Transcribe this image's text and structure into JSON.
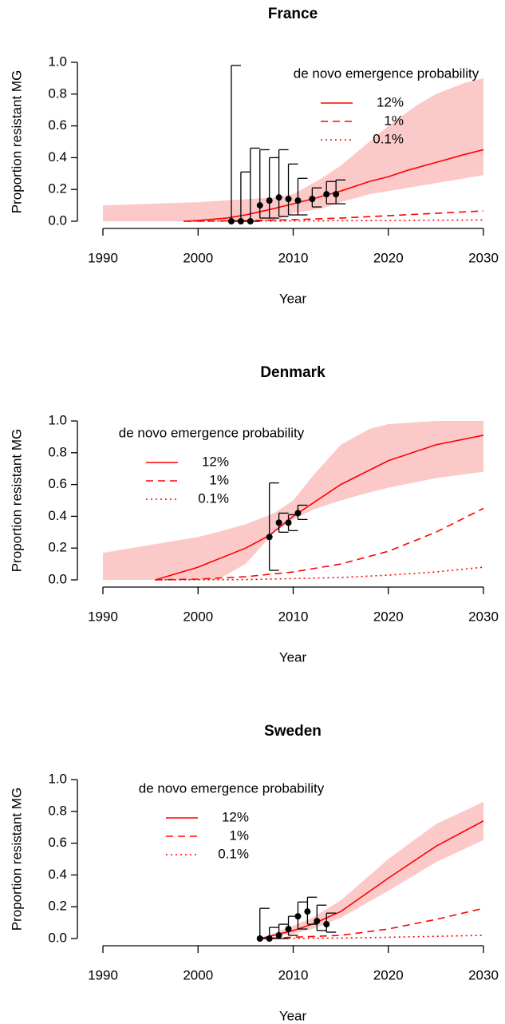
{
  "chart_data": [
    {
      "type": "line",
      "title": "France",
      "xlabel": "Year",
      "ylabel": "Proportion resistant MG",
      "legend_title": "de novo emergence probability",
      "legend": "topright",
      "xlim": [
        1990,
        2030
      ],
      "xticks": [
        1990,
        2000,
        2010,
        2020,
        2030
      ],
      "ylim": [
        0,
        1
      ],
      "yticks": [
        {
          "value": 0,
          "label": "0.0"
        },
        {
          "value": 0.2,
          "label": "0.2"
        },
        {
          "value": 0.4,
          "label": "0.4"
        },
        {
          "value": 0.6,
          "label": "0.6"
        },
        {
          "value": 0.8,
          "label": "0.8"
        },
        {
          "value": 1,
          "label": "1.0"
        }
      ],
      "series": [
        {
          "name": "12%",
          "color": "#ff0000",
          "linestyle": "solid",
          "x": [
            1998.5,
            2000,
            2003,
            2005,
            2008,
            2010,
            2012,
            2015,
            2018,
            2020,
            2022,
            2025,
            2028,
            2030
          ],
          "values": [
            0,
            0.005,
            0.02,
            0.04,
            0.08,
            0.11,
            0.14,
            0.19,
            0.25,
            0.28,
            0.32,
            0.37,
            0.42,
            0.45
          ]
        },
        {
          "name": "1%",
          "color": "#ff0000",
          "linestyle": "dashed",
          "x": [
            1998.5,
            2005,
            2010,
            2015,
            2020,
            2025,
            2030
          ],
          "values": [
            0,
            0.003,
            0.01,
            0.02,
            0.035,
            0.05,
            0.065
          ]
        },
        {
          "name": "0.1%",
          "color": "#ff0000",
          "linestyle": "dotted",
          "x": [
            1998.5,
            2010,
            2020,
            2030
          ],
          "values": [
            0,
            0.002,
            0.005,
            0.008
          ]
        }
      ],
      "band": {
        "color": "#fcc9c9",
        "x": [
          1990,
          2000,
          2008,
          2010,
          2013,
          2015,
          2018,
          2020,
          2023,
          2025,
          2028,
          2030
        ],
        "lower": [
          0,
          0,
          0,
          0.05,
          0.08,
          0.12,
          0.17,
          0.19,
          0.22,
          0.24,
          0.27,
          0.29
        ],
        "upper": [
          0.1,
          0.12,
          0.15,
          0.17,
          0.27,
          0.35,
          0.5,
          0.6,
          0.73,
          0.8,
          0.87,
          0.9
        ]
      },
      "points": {
        "x": [
          2003.5,
          2004.5,
          2005.5,
          2006.5,
          2007.5,
          2008.5,
          2009.5,
          2010.5,
          2012,
          2013.5,
          2014.5
        ],
        "values": [
          0,
          0,
          0,
          0.1,
          0.13,
          0.15,
          0.14,
          0.13,
          0.14,
          0.17,
          0.17
        ],
        "lower": [
          0,
          0,
          0,
          0.02,
          0.02,
          0.03,
          0.04,
          0.04,
          0.09,
          0.11,
          0.11
        ],
        "upper": [
          0.98,
          0.31,
          0.46,
          0.45,
          0.4,
          0.45,
          0.36,
          0.27,
          0.21,
          0.25,
          0.26
        ]
      }
    },
    {
      "type": "line",
      "title": "Denmark",
      "xlabel": "Year",
      "ylabel": "Proportion resistant MG",
      "legend_title": "de novo emergence probability",
      "legend": "topleft",
      "xlim": [
        1990,
        2030
      ],
      "xticks": [
        1990,
        2000,
        2010,
        2020,
        2030
      ],
      "ylim": [
        0,
        1
      ],
      "yticks": [
        {
          "value": 0,
          "label": "0.0"
        },
        {
          "value": 0.2,
          "label": "0.2"
        },
        {
          "value": 0.4,
          "label": "0.4"
        },
        {
          "value": 0.6,
          "label": "0.6"
        },
        {
          "value": 0.8,
          "label": "0.8"
        },
        {
          "value": 1,
          "label": "1.0"
        }
      ],
      "series": [
        {
          "name": "12%",
          "color": "#ff0000",
          "linestyle": "solid",
          "x": [
            1995.5,
            2000,
            2005,
            2007.5,
            2010,
            2015,
            2020,
            2025,
            2030
          ],
          "values": [
            0,
            0.08,
            0.2,
            0.28,
            0.4,
            0.6,
            0.75,
            0.85,
            0.91
          ]
        },
        {
          "name": "1%",
          "color": "#ff0000",
          "linestyle": "dashed",
          "x": [
            1995.5,
            2000,
            2005,
            2010,
            2015,
            2020,
            2025,
            2030
          ],
          "values": [
            0,
            0.005,
            0.02,
            0.05,
            0.1,
            0.18,
            0.3,
            0.45
          ]
        },
        {
          "name": "0.1%",
          "color": "#ff0000",
          "linestyle": "dotted",
          "x": [
            1995.5,
            2005,
            2010,
            2015,
            2020,
            2025,
            2030
          ],
          "values": [
            0,
            0.002,
            0.008,
            0.015,
            0.03,
            0.05,
            0.08
          ]
        }
      ],
      "band": {
        "color": "#fcc9c9",
        "x": [
          1990,
          2000,
          2002,
          2005,
          2008,
          2010,
          2012,
          2015,
          2018,
          2020,
          2025,
          2030
        ],
        "lower": [
          0,
          0,
          0,
          0.1,
          0.3,
          0.38,
          0.44,
          0.5,
          0.55,
          0.58,
          0.64,
          0.68
        ],
        "upper": [
          0.17,
          0.27,
          0.3,
          0.35,
          0.42,
          0.5,
          0.65,
          0.85,
          0.95,
          0.98,
          1,
          1
        ]
      },
      "points": {
        "x": [
          2007.5,
          2008.5,
          2009.5,
          2010.5
        ],
        "values": [
          0.27,
          0.36,
          0.36,
          0.42
        ],
        "lower": [
          0.06,
          0.3,
          0.31,
          0.38
        ],
        "upper": [
          0.61,
          0.42,
          0.41,
          0.47
        ]
      }
    },
    {
      "type": "line",
      "title": "Sweden",
      "xlabel": "Year",
      "ylabel": "Proportion resistant MG",
      "legend_title": "de novo emergence probability",
      "legend": "top",
      "xlim": [
        1990,
        2030
      ],
      "xticks": [
        1990,
        2000,
        2010,
        2020,
        2030
      ],
      "ylim": [
        0,
        1
      ],
      "yticks": [
        {
          "value": 0,
          "label": "0.0"
        },
        {
          "value": 0.2,
          "label": "0.2"
        },
        {
          "value": 0.4,
          "label": "0.4"
        },
        {
          "value": 0.6,
          "label": "0.6"
        },
        {
          "value": 0.8,
          "label": "0.8"
        },
        {
          "value": 1,
          "label": "1.0"
        }
      ],
      "series": [
        {
          "name": "12%",
          "color": "#ff0000",
          "linestyle": "solid",
          "x": [
            2006.5,
            2010,
            2012,
            2015,
            2020,
            2025,
            2030
          ],
          "values": [
            0,
            0.05,
            0.09,
            0.17,
            0.38,
            0.58,
            0.74
          ]
        },
        {
          "name": "1%",
          "color": "#ff0000",
          "linestyle": "dashed",
          "x": [
            2006.5,
            2015,
            2020,
            2025,
            2030
          ],
          "values": [
            0,
            0.02,
            0.06,
            0.12,
            0.19
          ]
        },
        {
          "name": "0.1%",
          "color": "#ff0000",
          "linestyle": "dotted",
          "x": [
            2006.5,
            2015,
            2020,
            2030
          ],
          "values": [
            0,
            0.003,
            0.008,
            0.02
          ]
        }
      ],
      "band": {
        "color": "#fcc9c9",
        "x": [
          2006.5,
          2010,
          2012,
          2015,
          2020,
          2025,
          2030
        ],
        "lower": [
          0,
          0.03,
          0.06,
          0.13,
          0.3,
          0.48,
          0.62
        ],
        "upper": [
          0,
          0.08,
          0.13,
          0.24,
          0.5,
          0.72,
          0.86
        ]
      },
      "points": {
        "x": [
          2006.5,
          2007.5,
          2008.5,
          2009.5,
          2010.5,
          2011.5,
          2012.5,
          2013.5
        ],
        "values": [
          0,
          0,
          0.02,
          0.06,
          0.14,
          0.17,
          0.11,
          0.09
        ],
        "lower": [
          0,
          0,
          0,
          0.02,
          0.06,
          0.09,
          0.05,
          0.04
        ],
        "upper": [
          0.19,
          0.07,
          0.09,
          0.14,
          0.23,
          0.26,
          0.21,
          0.16
        ]
      }
    }
  ]
}
